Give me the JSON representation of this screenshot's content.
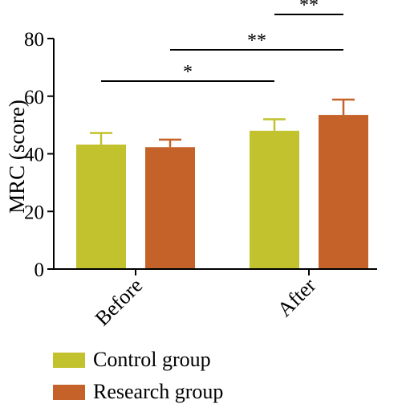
{
  "chart_data": {
    "type": "bar",
    "categories": [
      "Before",
      "After"
    ],
    "series": [
      {
        "name": "Control group",
        "color": "#c2c22e",
        "values": [
          43.2,
          48.0
        ],
        "errors": [
          4.0,
          4.0
        ]
      },
      {
        "name": "Research group",
        "color": "#c4622a",
        "values": [
          42.3,
          53.5
        ],
        "errors": [
          2.6,
          5.3
        ]
      }
    ],
    "ylabel": "MRC (score)",
    "xlabel": "",
    "ylim": [
      0,
      80
    ],
    "yticks": [
      "0",
      "20",
      "40",
      "60",
      "80"
    ],
    "significance": [
      {
        "label": "*",
        "from": "Before Control group",
        "to": "After Control group"
      },
      {
        "label": "**",
        "from": "Before Research group",
        "to": "After Research group"
      },
      {
        "label": "**",
        "from": "After Control group",
        "to": "After Research group"
      }
    ],
    "legend_placement": "bottom-left"
  }
}
